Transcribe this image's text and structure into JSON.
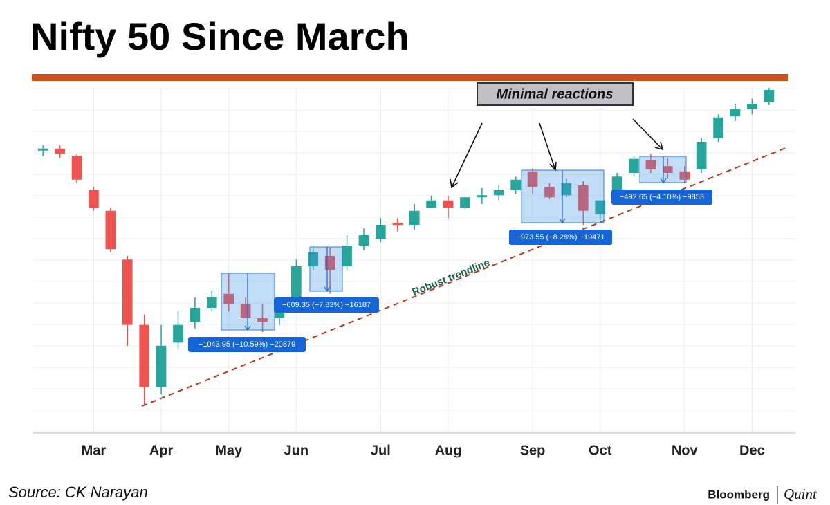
{
  "chart_data": {
    "type": "candlestick",
    "title": "Nifty 50 Since March",
    "source": "Source: CK Narayan",
    "brand": [
      "Bloomberg",
      "Quint"
    ],
    "callout": "Minimal reactions",
    "trendline_label": "Robust trendline",
    "measures": [
      "−1043.95 (−10.59%) −20879",
      "−609.35 (−7.83%) −16187",
      "−973.55 (−8.28%) −19471",
      "−492.65 (−4.10%) −9853"
    ],
    "categories": [
      null,
      null,
      null,
      "Mar",
      null,
      null,
      null,
      "Apr",
      null,
      null,
      null,
      "May",
      null,
      null,
      null,
      "Jun",
      null,
      null,
      null,
      null,
      "Jul",
      null,
      null,
      null,
      "Aug",
      null,
      null,
      null,
      null,
      "Sep",
      null,
      null,
      null,
      "Oct",
      null,
      null,
      null,
      null,
      "Nov",
      null,
      null,
      null,
      "Dec",
      null
    ],
    "open": [
      12430,
      12470,
      12330,
      11670,
      11270,
      10330,
      9070,
      7870,
      8730,
      9130,
      9400,
      9670,
      9470,
      9200,
      9200,
      9470,
      10200,
      10400,
      10200,
      10600,
      10730,
      11040,
      11000,
      11330,
      11470,
      11330,
      11530,
      11570,
      11670,
      12030,
      11730,
      11570,
      11760,
      11200,
      11600,
      12000,
      12240,
      12130,
      12030,
      12070,
      12670,
      13090,
      13230,
      13360
    ],
    "high": [
      12530,
      12530,
      12370,
      11730,
      11330,
      10400,
      9270,
      9070,
      9330,
      9600,
      9730,
      10070,
      9600,
      9470,
      9470,
      10330,
      10600,
      10560,
      10800,
      10930,
      11130,
      11130,
      11400,
      11560,
      11560,
      11530,
      11710,
      11760,
      11930,
      12090,
      11800,
      11890,
      11840,
      11470,
      12000,
      12330,
      12370,
      12290,
      12130,
      12670,
      13130,
      13330,
      13430,
      13640
    ],
    "low": [
      12330,
      12290,
      11800,
      11270,
      10470,
      8670,
      7530,
      7730,
      8600,
      9000,
      9330,
      9330,
      9200,
      8930,
      9070,
      9400,
      10130,
      9670,
      10110,
      10510,
      10670,
      10870,
      10910,
      11330,
      11130,
      11310,
      11400,
      11470,
      11600,
      11600,
      11490,
      11530,
      11000,
      11090,
      11530,
      11930,
      12000,
      11890,
      11800,
      12000,
      12600,
      13000,
      13130,
      13310
    ],
    "close": [
      12470,
      12370,
      11870,
      11330,
      10530,
      9070,
      7870,
      8670,
      9070,
      9400,
      9600,
      9470,
      9200,
      9130,
      9400,
      10200,
      10470,
      10130,
      10600,
      10800,
      11000,
      11000,
      11270,
      11470,
      11330,
      11530,
      11570,
      11670,
      11870,
      11730,
      11530,
      11800,
      11270,
      11470,
      11930,
      12270,
      12070,
      12000,
      11870,
      12600,
      13070,
      13230,
      13330,
      13600
    ],
    "up_color": "#26a69a",
    "down_color": "#ef5350",
    "ylim": [
      7000,
      14000
    ],
    "grid": true
  }
}
